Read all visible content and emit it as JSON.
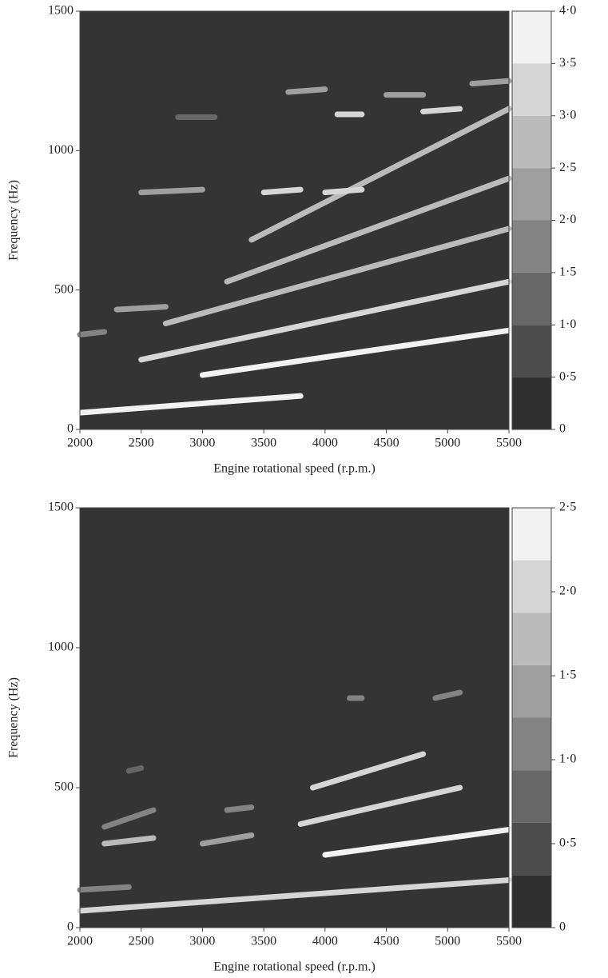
{
  "chart_data": [
    {
      "type": "heatmap",
      "xlabel": "Engine rotational speed (r.p.m.)",
      "ylabel": "Frequency (Hz)",
      "xlim": [
        2000,
        5500
      ],
      "xticks": [
        2000,
        2500,
        3000,
        3500,
        4000,
        4500,
        5000,
        5500
      ],
      "ylim": [
        0,
        1500
      ],
      "yticks": [
        0,
        500,
        1000,
        1500
      ],
      "colorbar": {
        "lim": [
          0,
          4
        ],
        "bands": 8,
        "ticks": [
          0,
          {
            "value": 0.5,
            "label": "0·5"
          },
          {
            "value": 1,
            "label": "1·0"
          },
          {
            "value": 1.5,
            "label": "1·5"
          },
          {
            "value": 2,
            "label": "2·0"
          },
          {
            "value": 2.5,
            "label": "2·5"
          },
          {
            "value": 3,
            "label": "3·0"
          },
          {
            "value": 3.5,
            "label": "3·5"
          },
          {
            "value": 4,
            "label": "4·0"
          }
        ]
      },
      "segments": [
        {
          "x": [
            2000,
            3800
          ],
          "y": [
            60,
            120
          ],
          "level": 3.5
        },
        {
          "x": [
            3000,
            5500
          ],
          "y": [
            195,
            355
          ],
          "level": 3.5
        },
        {
          "x": [
            2500,
            5500
          ],
          "y": [
            250,
            530
          ],
          "level": 3
        },
        {
          "x": [
            2700,
            5500
          ],
          "y": [
            380,
            720
          ],
          "level": 2.5
        },
        {
          "x": [
            3200,
            5500
          ],
          "y": [
            530,
            900
          ],
          "level": 2.5
        },
        {
          "x": [
            3400,
            5500
          ],
          "y": [
            680,
            1150
          ],
          "level": 2.5
        },
        {
          "x": [
            2300,
            2700
          ],
          "y": [
            430,
            440
          ],
          "level": 2
        },
        {
          "x": [
            2000,
            2200
          ],
          "y": [
            340,
            350
          ],
          "level": 1.5
        },
        {
          "x": [
            2500,
            3000
          ],
          "y": [
            850,
            860
          ],
          "level": 2
        },
        {
          "x": [
            3500,
            3800
          ],
          "y": [
            850,
            860
          ],
          "level": 3
        },
        {
          "x": [
            4000,
            4300
          ],
          "y": [
            850,
            860
          ],
          "level": 3
        },
        {
          "x": [
            4100,
            4300
          ],
          "y": [
            1130,
            1130
          ],
          "level": 3
        },
        {
          "x": [
            4800,
            5100
          ],
          "y": [
            1140,
            1150
          ],
          "level": 3
        },
        {
          "x": [
            3700,
            4000
          ],
          "y": [
            1210,
            1220
          ],
          "level": 2
        },
        {
          "x": [
            5200,
            5500
          ],
          "y": [
            1240,
            1250
          ],
          "level": 2
        },
        {
          "x": [
            2800,
            3100
          ],
          "y": [
            1120,
            1120
          ],
          "level": 1
        },
        {
          "x": [
            4500,
            4800
          ],
          "y": [
            1200,
            1200
          ],
          "level": 2
        }
      ]
    },
    {
      "type": "heatmap",
      "xlabel": "Engine rotational speed (r.p.m.)",
      "ylabel": "Frequency (Hz)",
      "xlim": [
        2000,
        5500
      ],
      "xticks": [
        2000,
        2500,
        3000,
        3500,
        4000,
        4500,
        5000,
        5500
      ],
      "ylim": [
        0,
        1500
      ],
      "yticks": [
        0,
        500,
        1000,
        1500
      ],
      "colorbar": {
        "lim": [
          0,
          2.5
        ],
        "bands": 8,
        "ticks": [
          0,
          {
            "value": 0.5,
            "label": "0·5"
          },
          {
            "value": 1,
            "label": "1·0"
          },
          {
            "value": 1.5,
            "label": "1·5"
          },
          {
            "value": 2,
            "label": "2·0"
          },
          {
            "value": 2.5,
            "label": "2·5"
          }
        ]
      },
      "segments": [
        {
          "x": [
            2000,
            5500
          ],
          "y": [
            60,
            170
          ],
          "level": 2
        },
        {
          "x": [
            2000,
            2400
          ],
          "y": [
            135,
            145
          ],
          "level": 1.2
        },
        {
          "x": [
            2200,
            2600
          ],
          "y": [
            300,
            320
          ],
          "level": 1.8
        },
        {
          "x": [
            3000,
            3400
          ],
          "y": [
            300,
            330
          ],
          "level": 1.5
        },
        {
          "x": [
            4000,
            5500
          ],
          "y": [
            260,
            350
          ],
          "level": 2.3
        },
        {
          "x": [
            3800,
            5100
          ],
          "y": [
            370,
            500
          ],
          "level": 2
        },
        {
          "x": [
            3900,
            4800
          ],
          "y": [
            500,
            620
          ],
          "level": 2
        },
        {
          "x": [
            2200,
            2600
          ],
          "y": [
            360,
            420
          ],
          "level": 1
        },
        {
          "x": [
            3200,
            3400
          ],
          "y": [
            420,
            430
          ],
          "level": 1
        },
        {
          "x": [
            4900,
            5100
          ],
          "y": [
            820,
            840
          ],
          "level": 1
        },
        {
          "x": [
            4200,
            4300
          ],
          "y": [
            820,
            820
          ],
          "level": 1
        },
        {
          "x": [
            2400,
            2500
          ],
          "y": [
            560,
            570
          ],
          "level": 0.8
        }
      ]
    }
  ]
}
